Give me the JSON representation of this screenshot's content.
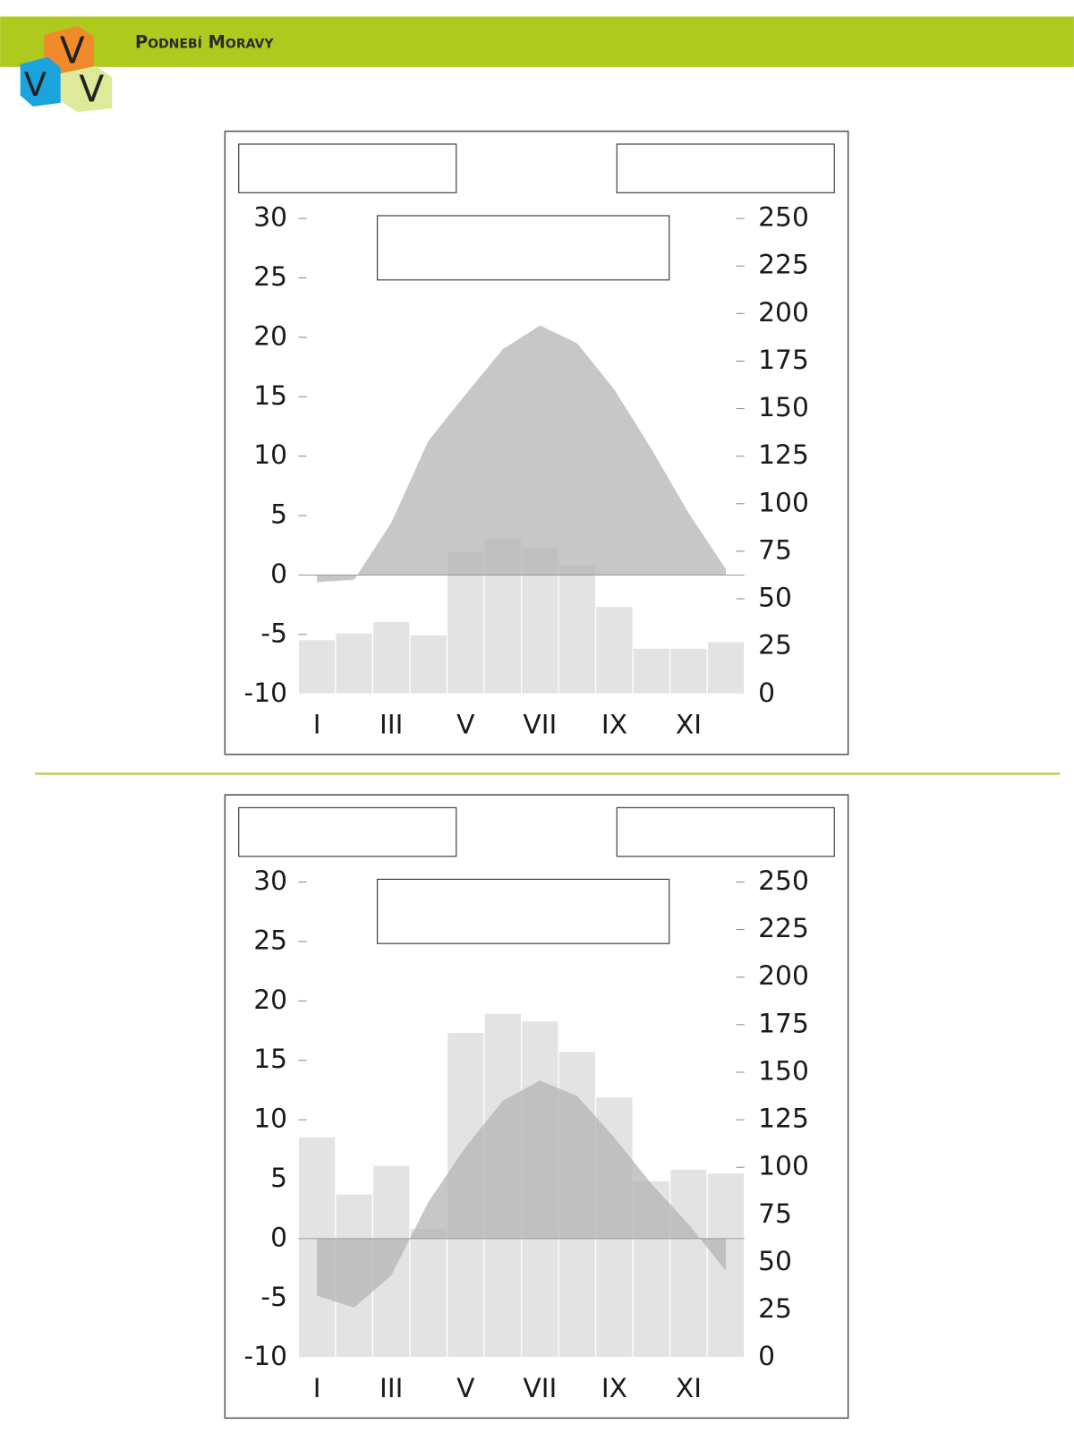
{
  "header": {
    "title": "Podnebí Moravy"
  },
  "chart_data": [
    {
      "type": "combo",
      "categories": [
        "I",
        null,
        "III",
        null,
        "V",
        null,
        "VII",
        null,
        "IX",
        null,
        "XI",
        null
      ],
      "ylim": [
        -10,
        30
      ],
      "yticks": [
        -10,
        -5,
        0,
        5,
        10,
        15,
        20,
        25,
        30
      ],
      "y2lim": [
        0,
        250
      ],
      "y2ticks": [
        0,
        25,
        50,
        75,
        100,
        125,
        150,
        175,
        200,
        225,
        250
      ],
      "series": [
        {
          "type": "bar",
          "axis": "y2",
          "color": "#e3e3e3",
          "values": [
            28.5,
            32,
            38,
            31,
            75,
            82,
            77,
            68,
            46,
            24,
            24,
            27.5
          ]
        },
        {
          "type": "area",
          "color": "#b4b4b4",
          "values": [
            -0.6,
            -0.4,
            4.4,
            11.3,
            15.2,
            19,
            21,
            19.5,
            15.6,
            10.6,
            5.2,
            0.5
          ]
        }
      ]
    },
    {
      "type": "combo",
      "categories": [
        "I",
        null,
        "III",
        null,
        "V",
        null,
        "VII",
        null,
        "IX",
        null,
        "XI",
        null
      ],
      "ylim": [
        -10,
        30
      ],
      "yticks": [
        -10,
        -5,
        0,
        5,
        10,
        15,
        20,
        25,
        30
      ],
      "y2lim": [
        0,
        250
      ],
      "y2ticks": [
        0,
        25,
        50,
        75,
        100,
        125,
        150,
        175,
        200,
        225,
        250
      ],
      "series": [
        {
          "type": "bar",
          "axis": "y2",
          "color": "#e3e3e3",
          "values": [
            116,
            86,
            101,
            68,
            171,
            181,
            177,
            161,
            137,
            93,
            99,
            97
          ]
        },
        {
          "type": "area",
          "color": "#b4b4b4",
          "values": [
            -4.8,
            -5.8,
            -3.1,
            3.1,
            7.7,
            11.6,
            13.3,
            12,
            8.5,
            4.6,
            1.2,
            -2.7
          ]
        }
      ]
    }
  ]
}
